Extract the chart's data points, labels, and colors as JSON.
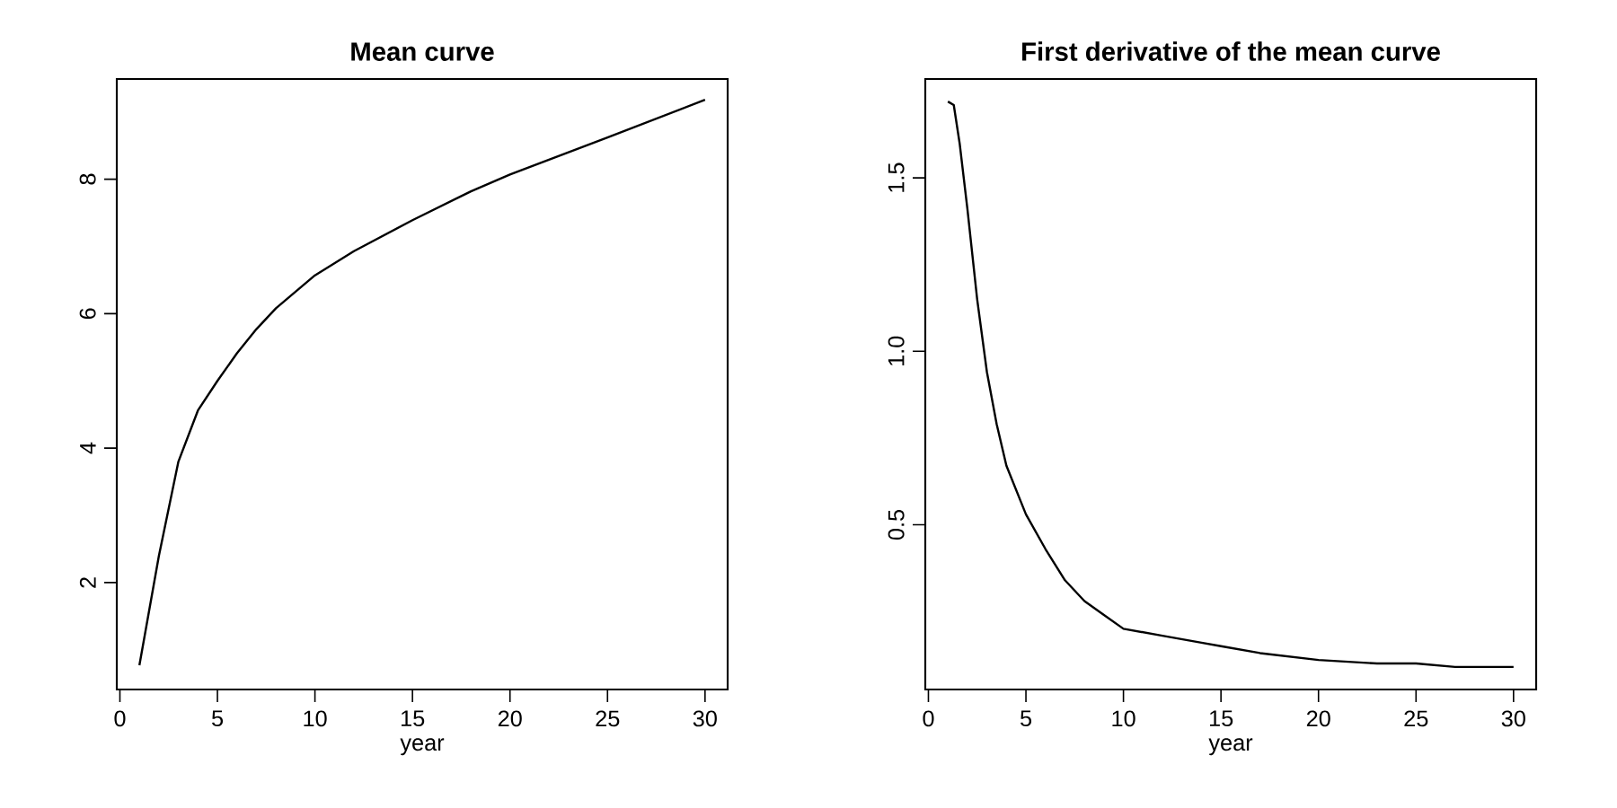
{
  "chart_data": [
    {
      "type": "line",
      "title": "Mean curve",
      "xlabel": "year",
      "color": "#000000",
      "line_style": "solid",
      "x": [
        1,
        2,
        3,
        4,
        5,
        6,
        7,
        8,
        10,
        12,
        15,
        18,
        20,
        25,
        30
      ],
      "values": [
        0.77,
        2.4,
        3.8,
        4.56,
        5.0,
        5.41,
        5.77,
        6.08,
        6.57,
        6.93,
        7.39,
        7.82,
        8.07,
        8.62,
        9.18
      ],
      "xlim": [
        -0.16,
        31.16
      ],
      "ylim": [
        0.41,
        9.49
      ],
      "xticks": [
        0,
        5,
        10,
        15,
        20,
        25,
        30
      ],
      "yticks": [
        2,
        4,
        6,
        8
      ]
    },
    {
      "type": "line",
      "title": "First derivative of the mean curve",
      "xlabel": "year",
      "color": "#000000",
      "line_style": "solid",
      "x": [
        1,
        1.3,
        1.6,
        2,
        2.5,
        3,
        3.5,
        4,
        5,
        6,
        7,
        8,
        9,
        10,
        12,
        14,
        15,
        17,
        20,
        23,
        25,
        27,
        30
      ],
      "values": [
        1.72,
        1.71,
        1.6,
        1.41,
        1.15,
        0.94,
        0.79,
        0.67,
        0.53,
        0.43,
        0.34,
        0.28,
        0.24,
        0.2,
        0.18,
        0.16,
        0.15,
        0.13,
        0.11,
        0.1,
        0.1,
        0.09,
        0.09
      ],
      "xlim": [
        -0.16,
        31.16
      ],
      "ylim": [
        0.025,
        1.785
      ],
      "xticks": [
        0,
        5,
        10,
        15,
        20,
        25,
        30
      ],
      "yticks": [
        0.5,
        {
          "value": 1,
          "label": "1.0"
        },
        1.5
      ]
    }
  ]
}
